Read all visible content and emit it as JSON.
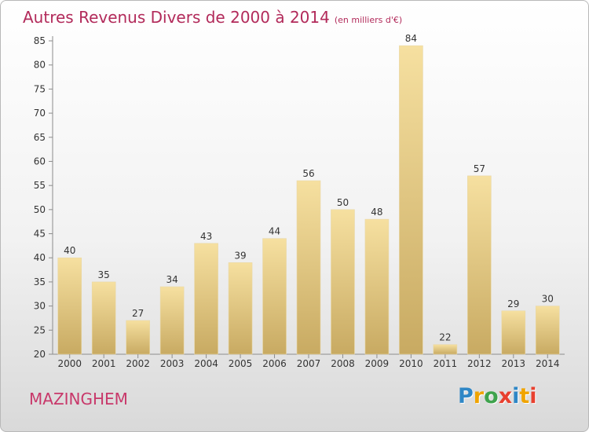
{
  "title": "Autres Revenus Divers de 2000 à 2014",
  "subtitle": "(en milliers d'€)",
  "commune": "MAZINGHEM",
  "logo": {
    "letters": [
      "P",
      "r",
      "o",
      "x",
      "i",
      "t",
      "i"
    ],
    "colors": [
      "#2f87c6",
      "#f0a400",
      "#3fa34d",
      "#e8402f",
      "#2f87c6",
      "#f0a400",
      "#e8402f"
    ]
  },
  "colors": {
    "bar_top": "#f6e0a0",
    "bar_bottom": "#c8aa62",
    "title": "#b22a5a"
  },
  "chart_data": {
    "type": "bar",
    "categories": [
      "2000",
      "2001",
      "2002",
      "2003",
      "2004",
      "2005",
      "2006",
      "2007",
      "2008",
      "2009",
      "2010",
      "2011",
      "2012",
      "2013",
      "2014"
    ],
    "values": [
      40,
      35,
      27,
      34,
      43,
      39,
      44,
      56,
      50,
      48,
      84,
      22,
      57,
      29,
      30
    ],
    "ylim": [
      20,
      85
    ],
    "yticks": [
      20,
      25,
      30,
      35,
      40,
      45,
      50,
      55,
      60,
      65,
      70,
      75,
      80,
      85
    ],
    "grid": false
  }
}
